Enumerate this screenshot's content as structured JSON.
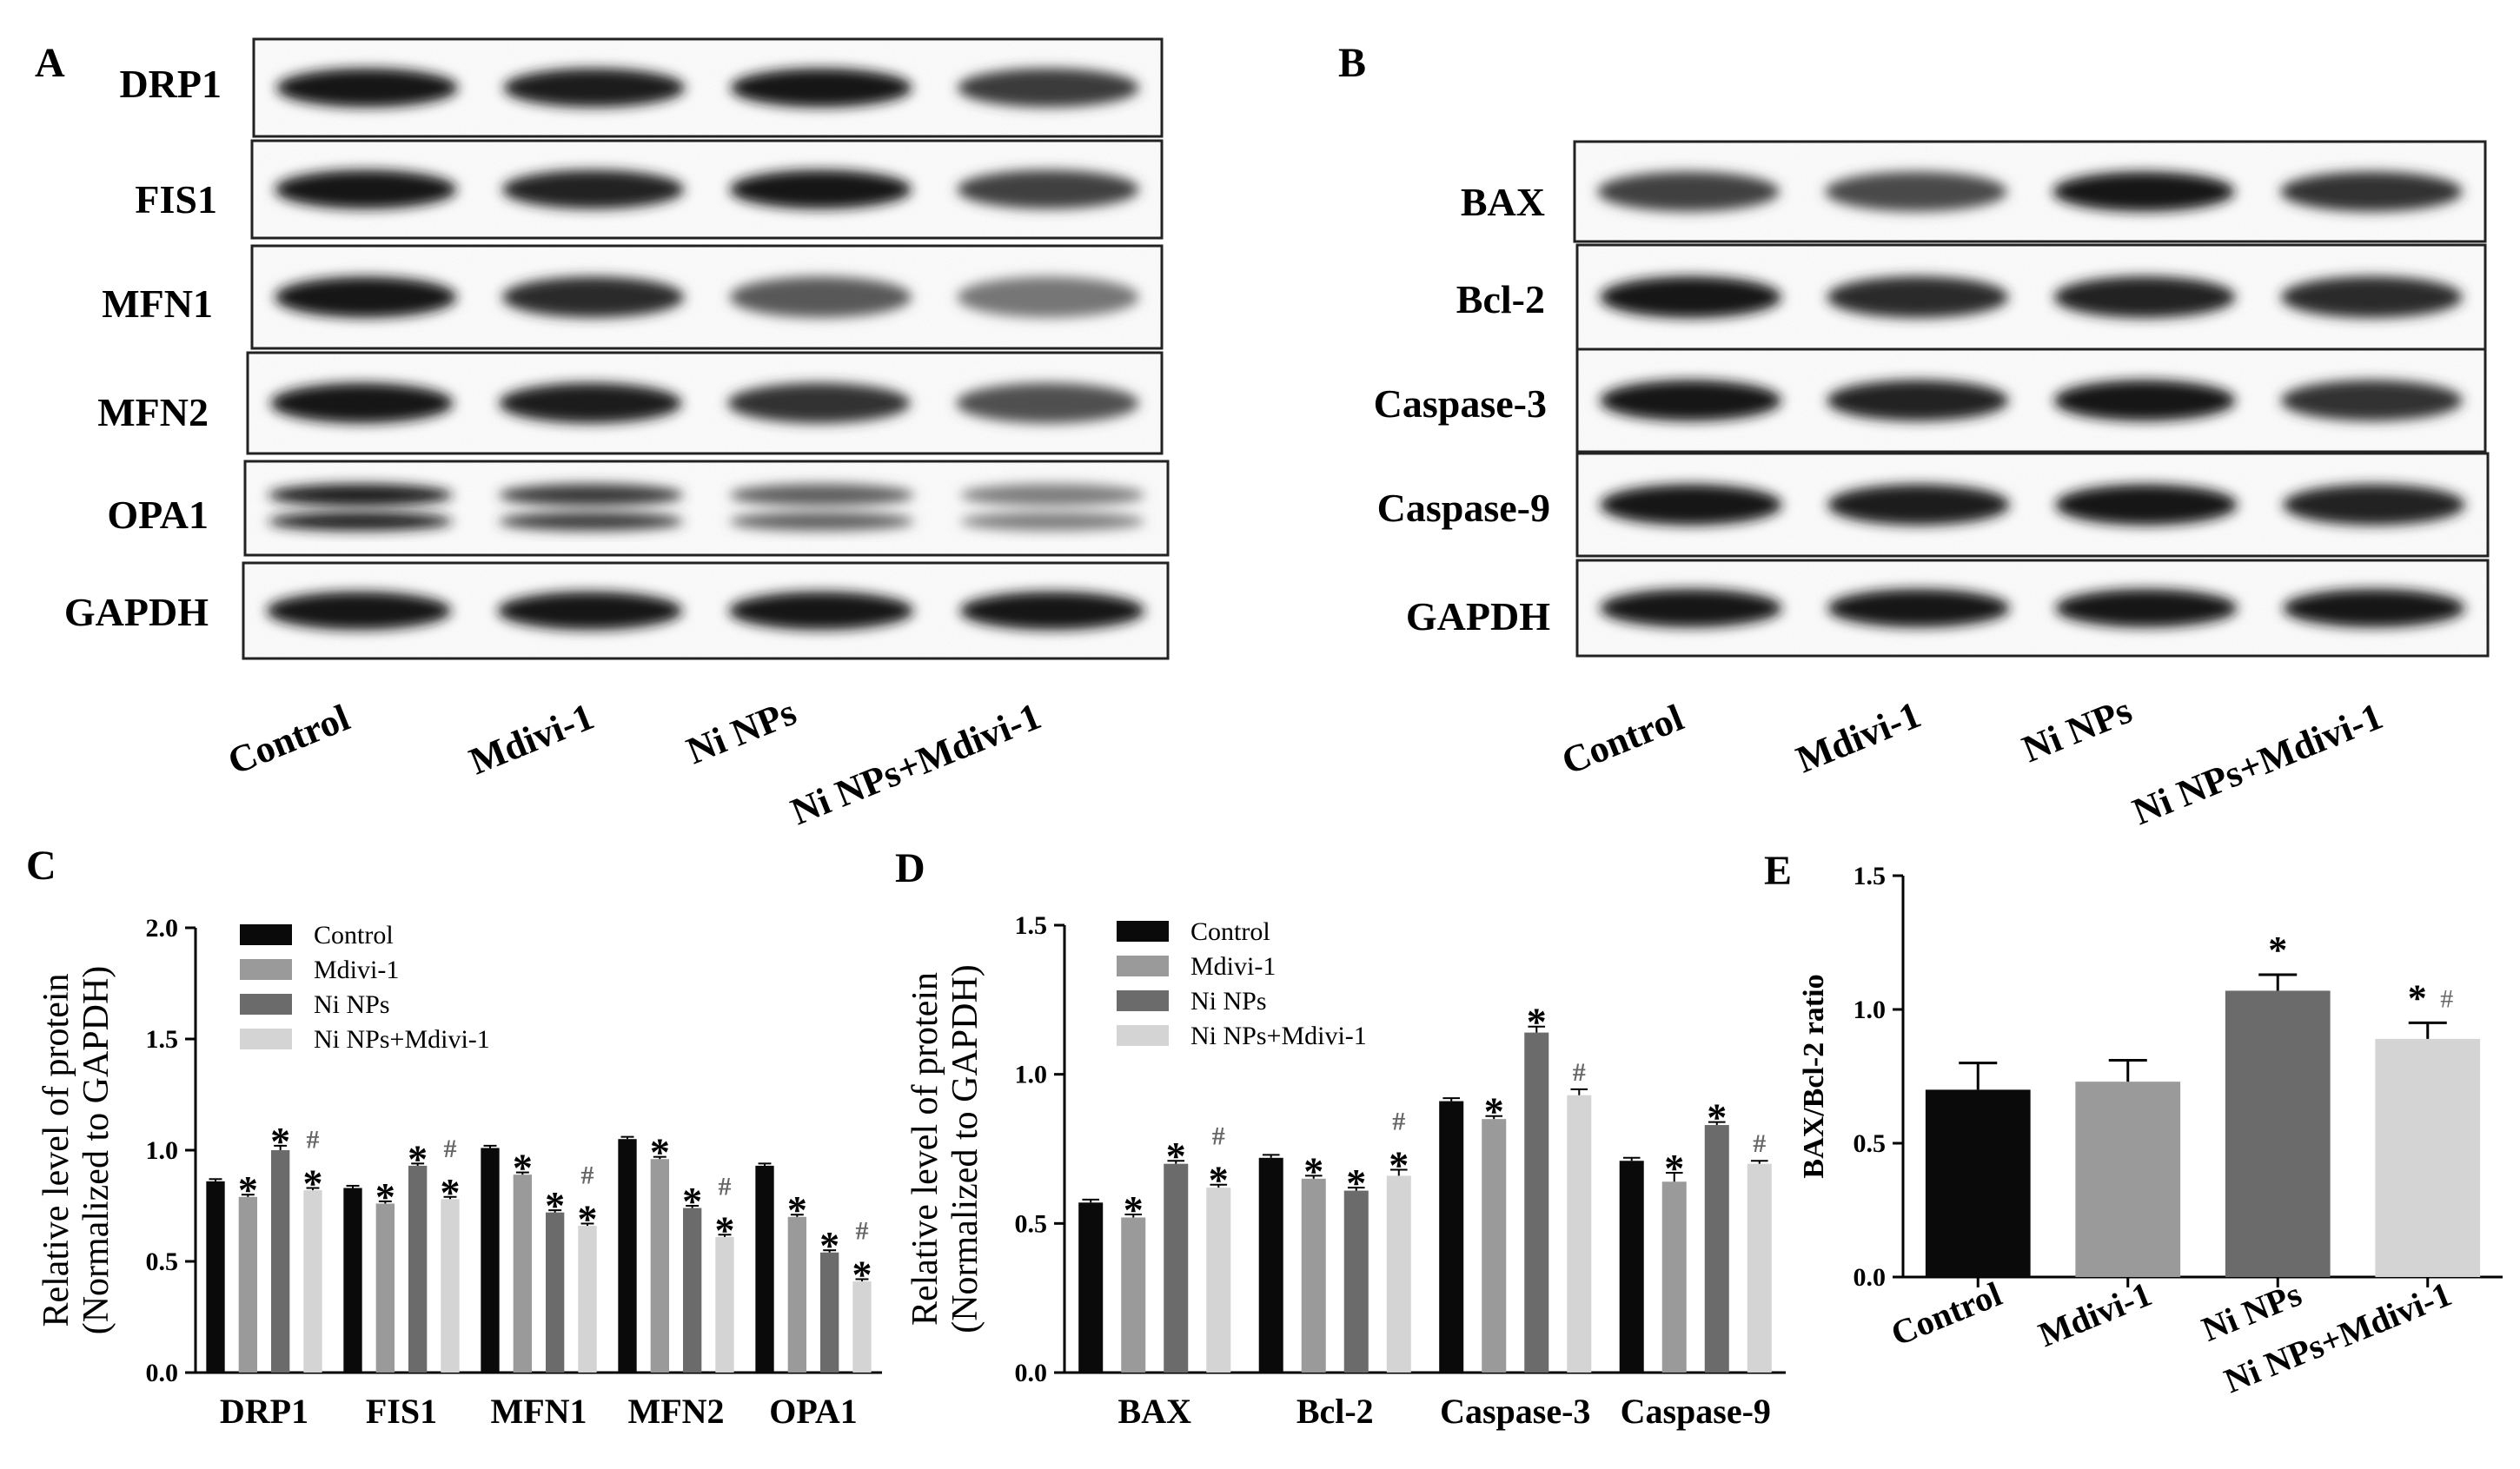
{
  "panels": {
    "A": {
      "letter": "A",
      "blot_labels": [
        "DRP1",
        "FIS1",
        "MFN1",
        "MFN2",
        "OPA1",
        "GAPDH"
      ],
      "lane_labels": [
        "Control",
        "Mdivi-1",
        "Ni NPs",
        "Ni NPs+Mdivi-1"
      ],
      "band_intensity": [
        [
          1.0,
          0.95,
          1.0,
          0.75
        ],
        [
          1.0,
          0.9,
          1.0,
          0.7
        ],
        [
          1.0,
          0.85,
          0.55,
          0.35
        ],
        [
          1.0,
          0.95,
          0.8,
          0.6
        ],
        [
          0.95,
          0.75,
          0.5,
          0.3
        ],
        [
          1.0,
          1.0,
          1.0,
          1.0
        ]
      ]
    },
    "B": {
      "letter": "B",
      "blot_labels": [
        "BAX",
        "Bcl-2",
        "Caspase-3",
        "Caspase-9",
        "GAPDH"
      ],
      "lane_labels": [
        "Control",
        "Mdivi-1",
        "Ni NPs",
        "Ni NPs+Mdivi-1"
      ],
      "band_intensity": [
        [
          0.7,
          0.65,
          1.0,
          0.8
        ],
        [
          1.0,
          0.85,
          0.9,
          0.85
        ],
        [
          1.0,
          0.9,
          1.0,
          0.8
        ],
        [
          1.0,
          0.95,
          1.0,
          0.9
        ],
        [
          1.0,
          1.0,
          1.0,
          1.0
        ]
      ]
    },
    "C": {
      "letter": "C"
    },
    "D": {
      "letter": "D"
    },
    "E": {
      "letter": "E"
    }
  },
  "series_colors": [
    "#0a0a0a",
    "#9a9a9a",
    "#6b6b6b",
    "#d4d4d4"
  ],
  "chart_data": [
    {
      "panel": "C",
      "type": "bar",
      "ylabel": "Relative level of protein",
      "ylabel2": "(Normalized to GAPDH)",
      "categories": [
        "DRP1",
        "FIS1",
        "MFN1",
        "MFN2",
        "OPA1"
      ],
      "ylim": [
        0.0,
        2.0
      ],
      "yticks": [
        "0.0",
        "0.5",
        "1.0",
        "1.5",
        "2.0"
      ],
      "legend_position": "top-right",
      "series": [
        {
          "name": "Control",
          "values": [
            0.86,
            0.83,
            1.01,
            1.05,
            0.93
          ],
          "errors": [
            0.01,
            0.01,
            0.01,
            0.01,
            0.01
          ],
          "marks": [
            "",
            "",
            "",
            "",
            ""
          ]
        },
        {
          "name": "Mdivi-1",
          "values": [
            0.79,
            0.76,
            0.89,
            0.96,
            0.7
          ],
          "errors": [
            0.01,
            0.01,
            0.01,
            0.01,
            0.01
          ],
          "marks": [
            "*",
            "*",
            "*",
            "*",
            "*"
          ]
        },
        {
          "name": "Ni NPs",
          "values": [
            1.0,
            0.93,
            0.72,
            0.74,
            0.54
          ],
          "errors": [
            0.02,
            0.01,
            0.01,
            0.01,
            0.01
          ],
          "marks": [
            "*",
            "*",
            "*",
            "*",
            "*"
          ]
        },
        {
          "name": "Ni NPs+Mdivi-1",
          "values": [
            0.82,
            0.78,
            0.66,
            0.61,
            0.41
          ],
          "errors": [
            0.01,
            0.01,
            0.01,
            0.01,
            0.01
          ],
          "marks": [
            "#*",
            "#*",
            "#*",
            "#*",
            "#*"
          ]
        }
      ]
    },
    {
      "panel": "D",
      "type": "bar",
      "ylabel": "Relative level of protein",
      "ylabel2": "(Normalized to GAPDH)",
      "categories": [
        "BAX",
        "Bcl-2",
        "Caspase-3",
        "Caspase-9"
      ],
      "ylim": [
        0.0,
        1.5
      ],
      "yticks": [
        "0.0",
        "0.5",
        "1.0",
        "1.5"
      ],
      "legend_position": "top-left",
      "series": [
        {
          "name": "Control",
          "values": [
            0.57,
            0.72,
            0.91,
            0.71
          ],
          "errors": [
            0.01,
            0.01,
            0.01,
            0.01
          ],
          "marks": [
            "",
            "",
            "",
            ""
          ]
        },
        {
          "name": "Mdivi-1",
          "values": [
            0.52,
            0.65,
            0.85,
            0.64
          ],
          "errors": [
            0.01,
            0.01,
            0.01,
            0.03
          ],
          "marks": [
            "*",
            "*",
            "*",
            "*"
          ]
        },
        {
          "name": "Ni NPs",
          "values": [
            0.7,
            0.61,
            1.14,
            0.83
          ],
          "errors": [
            0.01,
            0.01,
            0.02,
            0.01
          ],
          "marks": [
            "*",
            "*",
            "*",
            "*"
          ]
        },
        {
          "name": "Ni NPs+Mdivi-1",
          "values": [
            0.62,
            0.66,
            0.93,
            0.7
          ],
          "errors": [
            0.01,
            0.02,
            0.02,
            0.01
          ],
          "marks": [
            "#*",
            "#*",
            "#",
            "#"
          ]
        }
      ]
    },
    {
      "panel": "E",
      "type": "bar",
      "ylabel": "BAX/Bcl-2 ratio",
      "categories": [
        "Control",
        "Mdivi-1",
        "Ni NPs",
        "Ni NPs+Mdivi-1"
      ],
      "ylim": [
        0.0,
        1.5
      ],
      "yticks": [
        "0.0",
        "0.5",
        "1.0",
        "1.5"
      ],
      "values": [
        0.7,
        0.73,
        1.07,
        0.89
      ],
      "errors": [
        0.1,
        0.08,
        0.06,
        0.06
      ],
      "marks": [
        "",
        "",
        "*",
        "*#"
      ]
    }
  ]
}
